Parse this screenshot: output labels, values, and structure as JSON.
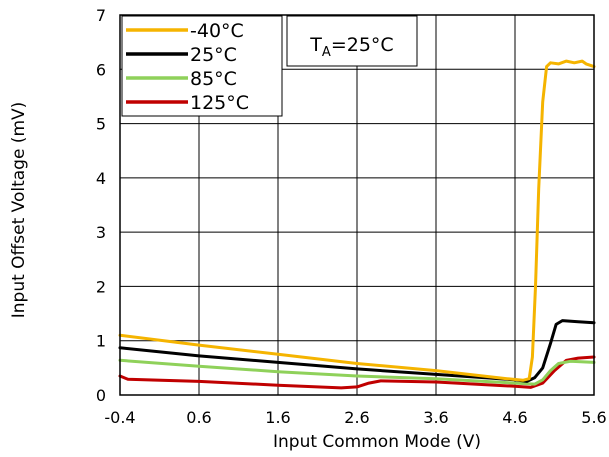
{
  "chart_data": {
    "type": "line",
    "title": "",
    "xlabel": "Input Common Mode (V)",
    "ylabel": "Input Offset Voltage (mV)",
    "xlim": [
      -0.4,
      5.6
    ],
    "ylim": [
      0,
      7
    ],
    "xticks": [
      "-0.4",
      "0.6",
      "1.6",
      "2.6",
      "3.6",
      "4.6",
      "5.6"
    ],
    "yticks": [
      "0",
      "1",
      "2",
      "3",
      "4",
      "5",
      "6",
      "7"
    ],
    "grid": true,
    "legend_position": "top-left",
    "annotation": {
      "prefix": "T",
      "subscript": "A",
      "suffix": "=25°C"
    },
    "series": [
      {
        "name": "-40°C",
        "color": "#f5b400",
        "points": [
          [
            -0.4,
            1.1
          ],
          [
            0.6,
            0.92
          ],
          [
            1.6,
            0.75
          ],
          [
            2.6,
            0.58
          ],
          [
            3.6,
            0.45
          ],
          [
            4.5,
            0.3
          ],
          [
            4.7,
            0.27
          ],
          [
            4.78,
            0.3
          ],
          [
            4.82,
            0.7
          ],
          [
            4.86,
            2.0
          ],
          [
            4.9,
            3.8
          ],
          [
            4.95,
            5.4
          ],
          [
            5.0,
            6.05
          ],
          [
            5.05,
            6.12
          ],
          [
            5.15,
            6.1
          ],
          [
            5.25,
            6.15
          ],
          [
            5.35,
            6.12
          ],
          [
            5.45,
            6.15
          ],
          [
            5.5,
            6.1
          ],
          [
            5.6,
            6.05
          ]
        ]
      },
      {
        "name": "25°C",
        "color": "#000000",
        "points": [
          [
            -0.4,
            0.87
          ],
          [
            0.6,
            0.72
          ],
          [
            1.6,
            0.6
          ],
          [
            2.6,
            0.48
          ],
          [
            3.6,
            0.38
          ],
          [
            4.6,
            0.28
          ],
          [
            4.75,
            0.25
          ],
          [
            4.85,
            0.32
          ],
          [
            4.95,
            0.5
          ],
          [
            5.05,
            0.95
          ],
          [
            5.12,
            1.3
          ],
          [
            5.2,
            1.37
          ],
          [
            5.4,
            1.35
          ],
          [
            5.6,
            1.33
          ]
        ]
      },
      {
        "name": "85°C",
        "color": "#8fd15a",
        "points": [
          [
            -0.4,
            0.64
          ],
          [
            0.6,
            0.53
          ],
          [
            1.6,
            0.43
          ],
          [
            2.6,
            0.35
          ],
          [
            3.6,
            0.3
          ],
          [
            4.6,
            0.22
          ],
          [
            4.85,
            0.2
          ],
          [
            4.95,
            0.28
          ],
          [
            5.05,
            0.45
          ],
          [
            5.15,
            0.58
          ],
          [
            5.3,
            0.62
          ],
          [
            5.6,
            0.6
          ]
        ]
      },
      {
        "name": "125°C",
        "color": "#c00000",
        "points": [
          [
            -0.4,
            0.35
          ],
          [
            -0.3,
            0.29
          ],
          [
            0.6,
            0.25
          ],
          [
            1.6,
            0.18
          ],
          [
            2.4,
            0.13
          ],
          [
            2.6,
            0.15
          ],
          [
            2.75,
            0.22
          ],
          [
            2.9,
            0.26
          ],
          [
            3.6,
            0.24
          ],
          [
            4.6,
            0.16
          ],
          [
            4.8,
            0.14
          ],
          [
            4.95,
            0.22
          ],
          [
            5.1,
            0.45
          ],
          [
            5.25,
            0.64
          ],
          [
            5.4,
            0.68
          ],
          [
            5.6,
            0.7
          ]
        ]
      }
    ]
  }
}
